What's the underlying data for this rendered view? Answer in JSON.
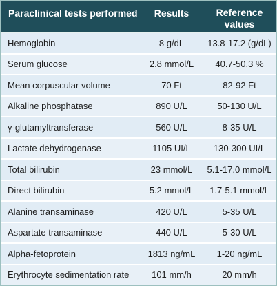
{
  "table": {
    "headers": {
      "test": "Paraclinical tests performed",
      "results": "Results",
      "reference_line1": "Reference",
      "reference_line2": "values"
    },
    "rows": [
      {
        "test": "Hemoglobin",
        "result": "8 g/dL",
        "reference": "13.8-17.2 (g/dL)"
      },
      {
        "test": "Serum glucose",
        "result": "2.8 mmol/L",
        "reference": "40.7-50.3 %"
      },
      {
        "test": "Mean corpuscular volume",
        "result": "70 Ft",
        "reference": "82-92 Ft"
      },
      {
        "test": "Alkaline phosphatase",
        "result": "890 U/L",
        "reference": "50-130 U/L"
      },
      {
        "test": "γ-glutamyltransferase",
        "result": "560 U/L",
        "reference": "8-35 U/L"
      },
      {
        "test": "Lactate dehydrogenase",
        "result": "1105 UI/L",
        "reference": "130-300 UI/L"
      },
      {
        "test": "Total bilirubin",
        "result": "23 mmol/L",
        "reference": "5.1-17.0 mmol/L"
      },
      {
        "test": "Direct bilirubin",
        "result": "5.2 mmol/L",
        "reference": "1.7-5.1 mmol/L"
      },
      {
        "test": "Alanine transaminase",
        "result": "420 U/L",
        "reference": "5-35 U/L"
      },
      {
        "test": "Aspartate transaminase",
        "result": "440 U/L",
        "reference": "5-30 U/L"
      },
      {
        "test": "Alpha-fetoprotein",
        "result": "1813 ng/mL",
        "reference": "1-20 ng/mL"
      },
      {
        "test": "Erythrocyte sedimentation rate",
        "result": "101 mm/h",
        "reference": "20 mm/h"
      }
    ]
  },
  "colors": {
    "header_bg": "#1f4e5a",
    "header_text": "#ffffff",
    "row_bg": "#e1ecf5",
    "row_text": "#1e1e1e"
  }
}
